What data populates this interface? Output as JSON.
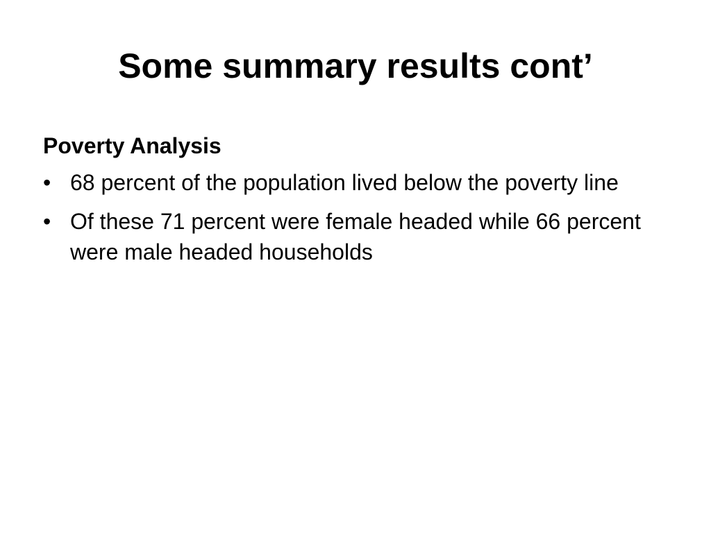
{
  "title": "Some summary results cont’",
  "section": {
    "heading": "Poverty Analysis",
    "bullets": [
      "68 percent of the population lived below the poverty line",
      "Of these 71 percent were female headed while 66 percent were male headed households"
    ]
  }
}
